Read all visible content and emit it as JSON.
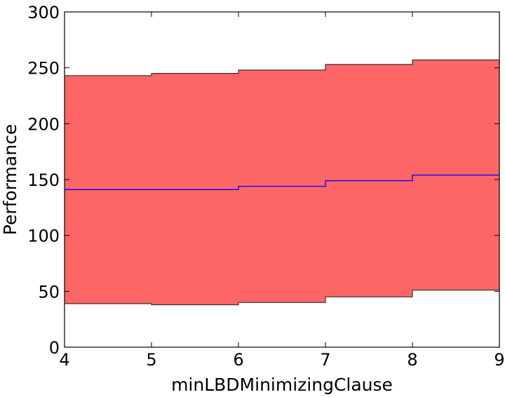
{
  "chart_data": {
    "type": "area",
    "xlabel": "minLBDMinimizingClause",
    "ylabel": "Performance",
    "xlim": [
      4,
      9
    ],
    "ylim": [
      0,
      300
    ],
    "xticks": [
      4,
      5,
      6,
      7,
      8,
      9
    ],
    "yticks": [
      0,
      50,
      100,
      150,
      200,
      250,
      300
    ],
    "grid": false,
    "legend": "none",
    "step": "post",
    "x": [
      4,
      5,
      6,
      7,
      8,
      9
    ],
    "series": [
      {
        "role": "mean",
        "values": [
          141,
          141,
          144,
          149,
          154,
          154
        ]
      },
      {
        "role": "upper",
        "values": [
          243,
          245,
          248,
          253,
          257,
          257
        ]
      },
      {
        "role": "lower",
        "values": [
          39,
          38,
          40,
          45,
          51,
          51
        ]
      }
    ],
    "colors": {
      "band": "#ff6666",
      "mean": "#0000ff",
      "edge": "#333333"
    }
  }
}
